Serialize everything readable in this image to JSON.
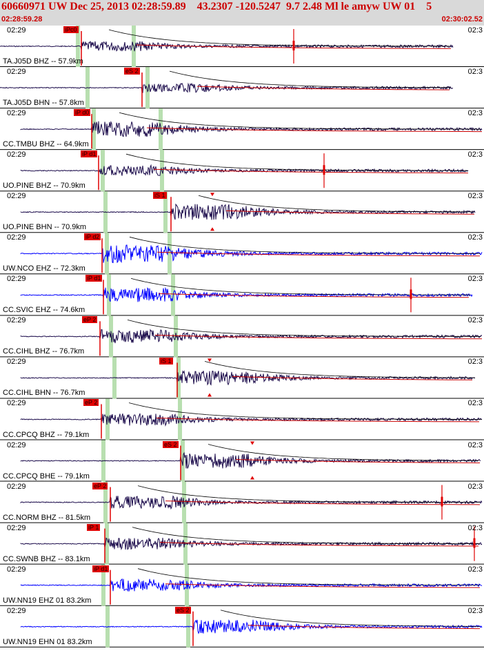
{
  "header": {
    "title": "60660971 UW Dec 25, 2013 02:28:59.89    43.2307 -120.5247  9.7 2.48 Ml le amyw UW 01    5",
    "start_time": "02:28:59.28",
    "end_time": "02:30:02.52"
  },
  "colors": {
    "header_bg": "#d9d9d9",
    "header_text": "#cc0000",
    "trace_bhz": "#1a0a4a",
    "trace_ehz": "#0000ff",
    "pick": "#e00000",
    "coda": "#cc0000",
    "s_window": "#b8dfb0"
  },
  "traces": [
    {
      "left_time": "02:29",
      "right_time": "02:3",
      "label": "TA.J05D BHZ -- 57.9km",
      "pick": "iPc0",
      "color": "bhz",
      "amp": 0.55
    },
    {
      "left_time": "02:29",
      "right_time": "02:3",
      "label": "TA.J05D BHN -- 57.8km",
      "pick": "eS 2",
      "color": "bhz",
      "amp": 0.5
    },
    {
      "left_time": "02:29",
      "right_time": "02:3",
      "label": "CC.TMBU BHZ -- 64.9km",
      "pick": "iP d0",
      "color": "bhz",
      "amp": 0.85
    },
    {
      "left_time": "02:29",
      "right_time": "02:3",
      "label": "UO.PINE BHZ -- 70.9km",
      "pick": "iP d1",
      "color": "bhz",
      "amp": 0.6
    },
    {
      "left_time": "02:29",
      "right_time": "02:3",
      "label": "UO.PINE BHN -- 70.9km",
      "pick": "iS 1",
      "color": "bhz",
      "amp": 0.9
    },
    {
      "left_time": "02:29",
      "right_time": "02:3",
      "label": "UW.NCO EHZ -- 72.3km",
      "pick": "iP d2",
      "color": "ehz",
      "amp": 1.0
    },
    {
      "left_time": "02:29",
      "right_time": "02:3",
      "label": "CC.SVIC EHZ -- 74.6km",
      "pick": "iP d1",
      "color": "ehz",
      "amp": 0.8
    },
    {
      "left_time": "02:29",
      "right_time": "02:3",
      "label": "CC.CIHL BHZ -- 76.7km",
      "pick": "eP 2",
      "color": "bhz",
      "amp": 0.75
    },
    {
      "left_time": "02:29",
      "right_time": "02:3",
      "label": "CC.CIHL BHN -- 76.7km",
      "pick": "iS 1",
      "color": "bhz",
      "amp": 0.8
    },
    {
      "left_time": "02:29",
      "right_time": "02:3",
      "label": "CC.CPCQ BHZ -- 79.1km",
      "pick": "eP 2",
      "color": "bhz",
      "amp": 0.7
    },
    {
      "left_time": "02:29",
      "right_time": "02:3",
      "label": "CC.CPCQ BHE -- 79.1km",
      "pick": "eS 2",
      "color": "bhz",
      "amp": 0.85
    },
    {
      "left_time": "02:29",
      "right_time": "02:3",
      "label": "CC.NORM BHZ -- 81.5km",
      "pick": "eP 2",
      "color": "bhz",
      "amp": 0.7
    },
    {
      "left_time": "02:29",
      "right_time": "02:3",
      "label": "CC.SWNB BHZ -- 83.1km",
      "pick": "iP 1",
      "color": "bhz",
      "amp": 0.65
    },
    {
      "left_time": "02:29",
      "right_time": "02:3",
      "label": "UW.NN19 EHZ 01 83.2km",
      "pick": "iP d1",
      "color": "ehz",
      "amp": 0.7
    },
    {
      "left_time": "02:29",
      "right_time": "02:3",
      "label": "UW.NN19 EHN 01 83.2km",
      "pick": "eS 2",
      "color": "ehz",
      "amp": 0.75
    }
  ]
}
